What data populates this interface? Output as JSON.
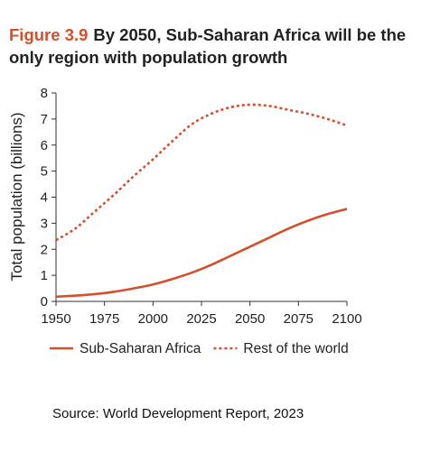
{
  "title": {
    "figure_label": "Figure 3.9",
    "text": "By 2050, Sub-Saharan Africa will be the only region with population growth"
  },
  "source": "Source: World Development Report, 2023",
  "chart_data": {
    "type": "line",
    "ylabel": "Total population (billions)",
    "xlabel": "",
    "xlim": [
      1950,
      2100
    ],
    "ylim": [
      0,
      8
    ],
    "x_ticks": [
      1950,
      1975,
      2000,
      2025,
      2050,
      2075,
      2100
    ],
    "y_ticks": [
      0,
      1,
      2,
      3,
      4,
      5,
      6,
      7,
      8
    ],
    "legend_position": "bottom",
    "colors": {
      "series": "#d4502c",
      "axis": "#333333"
    },
    "series": [
      {
        "name": "Sub-Saharan Africa",
        "style": "solid",
        "x": [
          1950,
          1960,
          1970,
          1980,
          1990,
          2000,
          2010,
          2020,
          2030,
          2040,
          2050,
          2060,
          2070,
          2080,
          2090,
          2100
        ],
        "y": [
          0.18,
          0.22,
          0.28,
          0.37,
          0.5,
          0.65,
          0.86,
          1.1,
          1.4,
          1.75,
          2.1,
          2.45,
          2.8,
          3.1,
          3.35,
          3.55
        ]
      },
      {
        "name": "Rest of the world",
        "style": "dotted",
        "x": [
          1950,
          1960,
          1970,
          1980,
          1990,
          2000,
          2010,
          2020,
          2030,
          2040,
          2050,
          2060,
          2070,
          2080,
          2090,
          2100
        ],
        "y": [
          2.35,
          2.8,
          3.45,
          4.1,
          4.8,
          5.45,
          6.15,
          6.8,
          7.2,
          7.45,
          7.55,
          7.5,
          7.35,
          7.2,
          7.0,
          6.75
        ]
      }
    ]
  }
}
